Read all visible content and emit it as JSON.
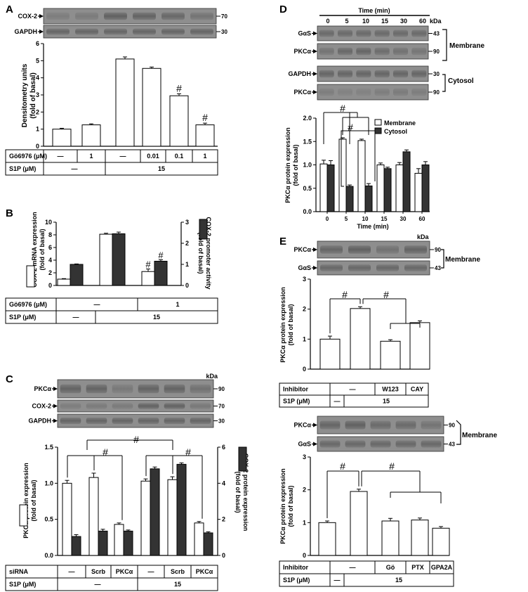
{
  "panels": {
    "A": {
      "letter": "A",
      "blots": [
        {
          "label": "COX-2",
          "kda": "70"
        },
        {
          "label": "GAPDH",
          "kda": "30"
        }
      ],
      "chart_data": {
        "type": "bar",
        "ylabel_lines": [
          "Densitometry units",
          "(fold of basal)"
        ],
        "ylim": [
          0,
          6
        ],
        "yticks": [
          0,
          1,
          2,
          3,
          4,
          5,
          6
        ],
        "values": [
          1.0,
          1.25,
          5.1,
          4.55,
          2.95,
          1.25
        ],
        "errors": [
          0.05,
          0.06,
          0.12,
          0.08,
          0.12,
          0.1
        ],
        "annotations": [
          "",
          "",
          "",
          "",
          "#",
          "#"
        ]
      },
      "table": {
        "row1_label": "Gö6976 (μM)",
        "row1": [
          "—",
          "1",
          "—",
          "0.01",
          "0.1",
          "1"
        ],
        "row2_label": "S1P (μM)",
        "row2": [
          "—",
          "15"
        ]
      }
    },
    "B": {
      "letter": "B",
      "chart_data": {
        "type": "bar",
        "ylabel_left_lines": [
          "COX-2  mRNA expression",
          "(fold of basal)"
        ],
        "ylabel_right_lines": [
          "COX-2 promoter activity",
          "(fold of basal)"
        ],
        "ylim_left": [
          0,
          10
        ],
        "ylim_right": [
          0,
          3
        ],
        "yticks_left": [
          0,
          2,
          4,
          6,
          8,
          10
        ],
        "yticks_right": [
          0,
          1,
          2,
          3
        ],
        "groups": 3,
        "series": [
          {
            "axis": "left",
            "values": [
              1.0,
              8.1,
              2.2
            ],
            "errors": [
              0.08,
              0.15,
              0.4
            ],
            "annotations": [
              "",
              "",
              "#"
            ]
          },
          {
            "axis": "right",
            "values": [
              1.0,
              2.45,
              1.15
            ],
            "errors": [
              0.02,
              0.08,
              0.07
            ],
            "annotations": [
              "",
              "",
              "#"
            ]
          }
        ]
      },
      "table": {
        "row1_label": "Gö6976 (μM)",
        "row1": [
          "—",
          "1"
        ],
        "row2_label": "S1P (μM)",
        "row2": [
          "—",
          "15"
        ]
      }
    },
    "C": {
      "letter": "C",
      "kda_header": "kDa",
      "blots": [
        {
          "label": "PKCα",
          "kda": "90"
        },
        {
          "label": "COX-2",
          "kda": "70"
        },
        {
          "label": "GAPDH",
          "kda": "30"
        }
      ],
      "chart_data": {
        "type": "bar",
        "ylabel_left_lines": [
          "PKCα  protein expression",
          "(fold of basal)"
        ],
        "ylabel_right_lines": [
          "COX-2 protein expression",
          "(fold of basal)"
        ],
        "ylim_left": [
          0,
          1.5
        ],
        "ylim_right": [
          0,
          6
        ],
        "yticks_left": [
          "0.0",
          "0.5",
          "1.0",
          "1.5"
        ],
        "yticks_right": [
          "0",
          "2",
          "4",
          "6"
        ],
        "groups": 6,
        "series": [
          {
            "axis": "left",
            "values": [
              1.0,
              1.08,
              0.43,
              1.03,
              1.05,
              0.45
            ],
            "errors": [
              0.04,
              0.06,
              0.02,
              0.03,
              0.04,
              0.02
            ]
          },
          {
            "axis": "right",
            "values": [
              1.05,
              1.35,
              1.35,
              4.8,
              5.05,
              1.25
            ],
            "errors": [
              0.1,
              0.1,
              0.06,
              0.1,
              0.08,
              0.06
            ]
          }
        ],
        "annotations": [
          "#",
          "#",
          "#"
        ]
      },
      "table": {
        "row1_label": "siRNA",
        "row1": [
          "—",
          "Scrb",
          "PKCα",
          "—",
          "Scrb",
          "PKCα"
        ],
        "row2_label": "S1P (μM)",
        "row2": [
          "—",
          "15"
        ]
      }
    },
    "D": {
      "letter": "D",
      "time_header": "Time (min)",
      "time_labels": [
        "0",
        "5",
        "10",
        "15",
        "30",
        "60"
      ],
      "kda_header": "kDa",
      "blots": [
        {
          "label": "GαS",
          "kda": "43"
        },
        {
          "label": "PKCα",
          "kda": "90"
        },
        {
          "label": "GAPDH",
          "kda": "30"
        },
        {
          "label": "PKCα",
          "kda": "90"
        }
      ],
      "fraction_labels": [
        "Membrane",
        "Cytosol"
      ],
      "chart_data": {
        "type": "bar",
        "ylabel_lines": [
          "PKCα  protein expression",
          "(fold of basal)"
        ],
        "xlabel": "Time (min)",
        "ylim": [
          0,
          2.0
        ],
        "yticks": [
          "0.0",
          "0.5",
          "1.0",
          "1.5",
          "2.0"
        ],
        "categories": [
          "0",
          "5",
          "10",
          "15",
          "30",
          "60"
        ],
        "series": [
          {
            "name": "Membrane",
            "values": [
              1.02,
              1.55,
              1.52,
              1.0,
              1.0,
              0.82
            ],
            "errors": [
              0.08,
              0.03,
              0.03,
              0.04,
              0.05,
              0.1
            ]
          },
          {
            "name": "Cytosol",
            "values": [
              1.0,
              0.54,
              0.55,
              0.92,
              1.28,
              1.0
            ],
            "errors": [
              0.09,
              0.03,
              0.05,
              0.03,
              0.04,
              0.07
            ]
          }
        ],
        "annotations": [
          "#",
          "#"
        ]
      }
    },
    "E": {
      "letter": "E",
      "kda_header": "kDa",
      "top": {
        "blots": [
          {
            "label": "PKCα",
            "kda": "90"
          },
          {
            "label": "GαS",
            "kda": "43"
          }
        ],
        "fraction_label": "Membrane",
        "chart_data": {
          "type": "bar",
          "ylabel_lines": [
            "PKCα  protein expression",
            "(fold of basal)"
          ],
          "ylim": [
            0,
            3
          ],
          "yticks": [
            0,
            1,
            2,
            3
          ],
          "values": [
            1.0,
            2.02,
            0.93,
            1.55
          ],
          "errors": [
            0.1,
            0.06,
            0.05,
            0.06
          ],
          "annotations": [
            "#",
            "#"
          ]
        },
        "table": {
          "row1_label": "Inhibitor",
          "row1": [
            "—",
            "W123",
            "CAY"
          ],
          "row2_label": "S1P (μM)",
          "row2": [
            "—",
            "15"
          ]
        }
      },
      "bottom": {
        "blots": [
          {
            "label": "PKCα",
            "kda": "90"
          },
          {
            "label": "GαS",
            "kda": "43"
          }
        ],
        "fraction_label": "Membrane",
        "chart_data": {
          "type": "bar",
          "ylabel_lines": [
            "PKCα  protein expression",
            "(fold of basal)"
          ],
          "ylim": [
            0,
            3
          ],
          "yticks": [
            0,
            1,
            2,
            3
          ],
          "values": [
            1.0,
            1.95,
            1.05,
            1.08,
            0.83
          ],
          "errors": [
            0.05,
            0.07,
            0.08,
            0.06,
            0.05
          ],
          "annotations": [
            "#",
            "#"
          ]
        },
        "table": {
          "row1_label": "Inhibitor",
          "row1": [
            "—",
            "Gö",
            "PTX",
            "GPA2A"
          ],
          "row2_label": "S1P (μM)",
          "row2": [
            "—",
            "15"
          ]
        }
      }
    }
  }
}
